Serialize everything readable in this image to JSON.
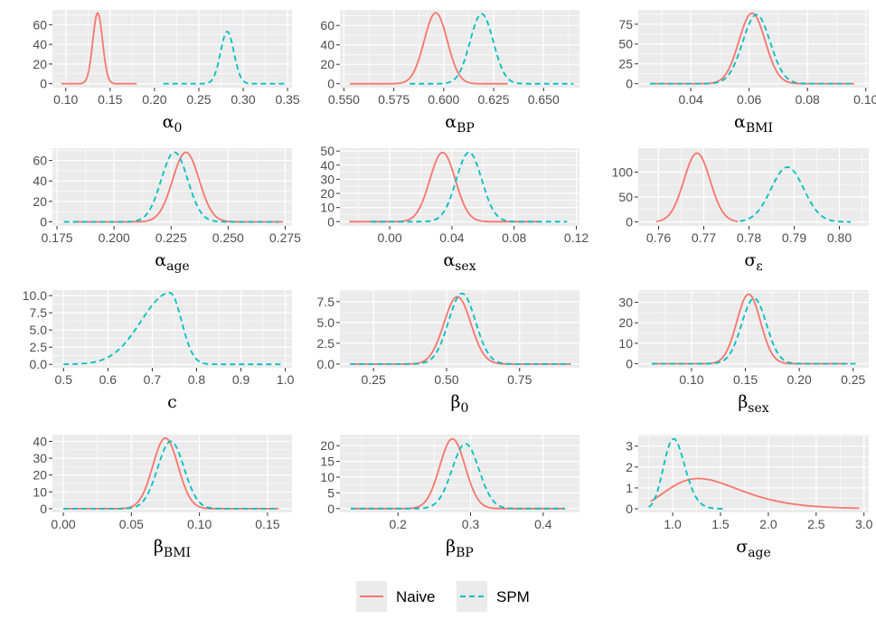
{
  "colors": {
    "naive": "#f8766d",
    "spm": "#00bfc4",
    "panel": "#ebebeb",
    "grid": "#ffffff",
    "tick_text": "#4d4d4d"
  },
  "legend": {
    "position": "bottom",
    "items": [
      {
        "name": "Naive",
        "style": "solid"
      },
      {
        "name": "SPM",
        "style": "dashed"
      }
    ]
  },
  "chart_data": [
    {
      "type": "line",
      "id": "alpha0",
      "xlabel": {
        "main": "α",
        "sub": "0"
      },
      "xlim": [
        0.085,
        0.355
      ],
      "ylim": [
        -4,
        75
      ],
      "xticks": [
        0.1,
        0.15,
        0.2,
        0.25,
        0.3,
        0.35
      ],
      "xtick_labels": [
        "0.10",
        "0.15",
        "0.20",
        "0.25",
        "0.30",
        "0.35"
      ],
      "yticks": [
        0,
        20,
        40,
        60
      ],
      "ytick_labels": [
        "0",
        "20",
        "40",
        "60"
      ],
      "series": [
        {
          "name": "Naive",
          "kind": "gauss",
          "mu": 0.136,
          "sd": 0.0055,
          "peak": 72,
          "range": [
            0.095,
            0.18
          ]
        },
        {
          "name": "SPM",
          "kind": "gauss",
          "mu": 0.282,
          "sd": 0.0075,
          "peak": 53,
          "range": [
            0.21,
            0.35
          ]
        }
      ]
    },
    {
      "type": "line",
      "id": "alphaBP",
      "xlabel": {
        "main": "α",
        "sub": "BP"
      },
      "xlim": [
        0.548,
        0.668
      ],
      "ylim": [
        -4,
        76
      ],
      "xticks": [
        0.55,
        0.575,
        0.6,
        0.625,
        0.65
      ],
      "xtick_labels": [
        "0.550",
        "0.575",
        "0.600",
        "0.625",
        "0.650"
      ],
      "yticks": [
        0,
        20,
        40,
        60
      ],
      "ytick_labels": [
        "0",
        "20",
        "40",
        "60"
      ],
      "series": [
        {
          "name": "Naive",
          "kind": "gauss",
          "mu": 0.596,
          "sd": 0.0058,
          "peak": 73,
          "range": [
            0.553,
            0.632
          ]
        },
        {
          "name": "SPM",
          "kind": "gauss",
          "mu": 0.619,
          "sd": 0.0058,
          "peak": 72,
          "range": [
            0.583,
            0.665
          ]
        }
      ]
    },
    {
      "type": "line",
      "id": "alphaBMI",
      "xlabel": {
        "main": "α",
        "sub": "BMI"
      },
      "xlim": [
        0.022,
        0.101
      ],
      "ylim": [
        -5,
        93
      ],
      "xticks": [
        0.04,
        0.06,
        0.08,
        0.1
      ],
      "xtick_labels": [
        "0.04",
        "0.06",
        "0.08",
        "0.10"
      ],
      "yticks": [
        0,
        25,
        50,
        75
      ],
      "ytick_labels": [
        "0",
        "25",
        "50",
        "75"
      ],
      "series": [
        {
          "name": "Naive",
          "kind": "gauss",
          "mu": 0.061,
          "sd": 0.0045,
          "peak": 89,
          "range": [
            0.026,
            0.096
          ]
        },
        {
          "name": "SPM",
          "kind": "gauss",
          "mu": 0.0625,
          "sd": 0.0047,
          "peak": 87,
          "range": [
            0.026,
            0.096
          ]
        }
      ]
    },
    {
      "type": "line",
      "id": "alphaAge",
      "xlabel": {
        "main": "α",
        "sub": "age"
      },
      "xlim": [
        0.173,
        0.278
      ],
      "ylim": [
        -4,
        72
      ],
      "xticks": [
        0.175,
        0.2,
        0.225,
        0.25,
        0.275
      ],
      "xtick_labels": [
        "0.175",
        "0.200",
        "0.225",
        "0.250",
        "0.275"
      ],
      "yticks": [
        0,
        20,
        40,
        60
      ],
      "ytick_labels": [
        "0",
        "20",
        "40",
        "60"
      ],
      "series": [
        {
          "name": "Naive",
          "kind": "gauss",
          "mu": 0.2315,
          "sd": 0.0058,
          "peak": 68,
          "range": [
            0.182,
            0.274
          ]
        },
        {
          "name": "SPM",
          "kind": "gauss",
          "mu": 0.2265,
          "sd": 0.0058,
          "peak": 68,
          "range": [
            0.178,
            0.272
          ]
        }
      ]
    },
    {
      "type": "line",
      "id": "alphaSex",
      "xlabel": {
        "main": "α",
        "sub": "sex"
      },
      "xlim": [
        -0.032,
        0.122
      ],
      "ylim": [
        -3,
        52
      ],
      "xticks": [
        0.0,
        0.04,
        0.08,
        0.12
      ],
      "xtick_labels": [
        "0.00",
        "0.04",
        "0.08",
        "0.12"
      ],
      "yticks": [
        0,
        10,
        20,
        30,
        40,
        50
      ],
      "ytick_labels": [
        "0",
        "10",
        "20",
        "30",
        "40",
        "50"
      ],
      "series": [
        {
          "name": "Naive",
          "kind": "gauss",
          "mu": 0.034,
          "sd": 0.0082,
          "peak": 49,
          "range": [
            -0.026,
            0.096
          ]
        },
        {
          "name": "SPM",
          "kind": "gauss",
          "mu": 0.051,
          "sd": 0.0082,
          "peak": 49,
          "range": [
            -0.012,
            0.114
          ]
        }
      ]
    },
    {
      "type": "line",
      "id": "sigmaEps",
      "xlabel": {
        "main": "σ",
        "sub": "ε"
      },
      "xlim": [
        0.7555,
        0.8065
      ],
      "ylim": [
        -8,
        148
      ],
      "xticks": [
        0.76,
        0.77,
        0.78,
        0.79,
        0.8
      ],
      "xtick_labels": [
        "0.76",
        "0.77",
        "0.78",
        "0.79",
        "0.80"
      ],
      "yticks": [
        0,
        50,
        100
      ],
      "ytick_labels": [
        "0",
        "50",
        "100"
      ],
      "series": [
        {
          "name": "Naive",
          "kind": "gauss",
          "mu": 0.7685,
          "sd": 0.0029,
          "peak": 138,
          "range": [
            0.7595,
            0.7775
          ]
        },
        {
          "name": "SPM",
          "kind": "gauss",
          "mu": 0.7885,
          "sd": 0.0036,
          "peak": 110,
          "range": [
            0.778,
            0.8025
          ]
        }
      ]
    },
    {
      "type": "line",
      "id": "c",
      "xlabel": {
        "main": "c",
        "sub": ""
      },
      "xlim": [
        0.475,
        1.015
      ],
      "ylim": [
        -0.5,
        10.8
      ],
      "xticks": [
        0.5,
        0.6,
        0.7,
        0.8,
        0.9,
        1.0
      ],
      "xtick_labels": [
        "0.5",
        "0.6",
        "0.7",
        "0.8",
        "0.9",
        "1.0"
      ],
      "yticks": [
        0,
        2.5,
        5.0,
        7.5,
        10.0
      ],
      "ytick_labels": [
        "0.0",
        "2.5",
        "5.0",
        "7.5",
        "10.0"
      ],
      "series": [
        {
          "name": "SPM",
          "kind": "skew",
          "mu": 0.74,
          "sdl": 0.065,
          "sdr": 0.026,
          "peak": 10.4,
          "range": [
            0.5,
            0.99
          ]
        }
      ]
    },
    {
      "type": "line",
      "id": "beta0",
      "xlabel": {
        "main": "β",
        "sub": "0"
      },
      "xlim": [
        0.135,
        0.955
      ],
      "ylim": [
        -0.45,
        8.9
      ],
      "xticks": [
        0.25,
        0.5,
        0.75
      ],
      "xtick_labels": [
        "0.25",
        "0.50",
        "0.75"
      ],
      "yticks": [
        0,
        2.5,
        5.0,
        7.5
      ],
      "ytick_labels": [
        "0.0",
        "2.5",
        "5.0",
        "7.5"
      ],
      "series": [
        {
          "name": "Naive",
          "kind": "gauss",
          "mu": 0.537,
          "sd": 0.046,
          "peak": 8.1,
          "range": [
            0.17,
            0.925
          ]
        },
        {
          "name": "SPM",
          "kind": "gauss",
          "mu": 0.553,
          "sd": 0.046,
          "peak": 8.5,
          "range": [
            0.17,
            0.925
          ]
        }
      ]
    },
    {
      "type": "line",
      "id": "betaSex",
      "xlabel": {
        "main": "β",
        "sub": "sex"
      },
      "xlim": [
        0.0505,
        0.2645
      ],
      "ylim": [
        -2,
        36
      ],
      "xticks": [
        0.1,
        0.15,
        0.2,
        0.25
      ],
      "xtick_labels": [
        "0.10",
        "0.15",
        "0.20",
        "0.25"
      ],
      "yticks": [
        0,
        10,
        20,
        30
      ],
      "ytick_labels": [
        "0",
        "10",
        "20",
        "30"
      ],
      "series": [
        {
          "name": "Naive",
          "kind": "gauss",
          "mu": 0.153,
          "sd": 0.011,
          "peak": 34,
          "range": [
            0.063,
            0.245
          ]
        },
        {
          "name": "SPM",
          "kind": "gauss",
          "mu": 0.158,
          "sd": 0.0115,
          "peak": 32,
          "range": [
            0.063,
            0.255
          ]
        }
      ]
    },
    {
      "type": "line",
      "id": "betaBMI",
      "xlabel": {
        "main": "β",
        "sub": "BMI"
      },
      "xlim": [
        -0.008,
        0.168
      ],
      "ylim": [
        -2.2,
        44
      ],
      "xticks": [
        0.0,
        0.05,
        0.1,
        0.15
      ],
      "xtick_labels": [
        "0.00",
        "0.05",
        "0.10",
        "0.15"
      ],
      "yticks": [
        0,
        10,
        20,
        30,
        40
      ],
      "ytick_labels": [
        "0",
        "10",
        "20",
        "30",
        "40"
      ],
      "series": [
        {
          "name": "Naive",
          "kind": "gauss",
          "mu": 0.075,
          "sd": 0.0093,
          "peak": 42,
          "range": [
            0.0,
            0.158
          ]
        },
        {
          "name": "SPM",
          "kind": "gauss",
          "mu": 0.079,
          "sd": 0.0097,
          "peak": 40,
          "range": [
            0.0,
            0.158
          ]
        }
      ]
    },
    {
      "type": "line",
      "id": "betaBP",
      "xlabel": {
        "main": "β",
        "sub": "BP"
      },
      "xlim": [
        0.12,
        0.45
      ],
      "ylim": [
        -1.2,
        23.5
      ],
      "xticks": [
        0.2,
        0.3,
        0.4
      ],
      "xtick_labels": [
        "0.2",
        "0.3",
        "0.4"
      ],
      "yticks": [
        0,
        5,
        10,
        15,
        20
      ],
      "ytick_labels": [
        "0",
        "5",
        "10",
        "15",
        "20"
      ],
      "series": [
        {
          "name": "Naive",
          "kind": "gauss",
          "mu": 0.275,
          "sd": 0.0175,
          "peak": 22.2,
          "range": [
            0.135,
            0.43
          ]
        },
        {
          "name": "SPM",
          "kind": "gauss",
          "mu": 0.293,
          "sd": 0.0185,
          "peak": 20.6,
          "range": [
            0.135,
            0.43
          ]
        }
      ]
    },
    {
      "type": "line",
      "id": "sigmaAge",
      "xlabel": {
        "main": "σ",
        "sub": "age"
      },
      "xlim": [
        0.64,
        3.05
      ],
      "ylim": [
        -0.17,
        3.55
      ],
      "xticks": [
        1.0,
        1.5,
        2.0,
        2.5,
        3.0
      ],
      "xtick_labels": [
        "1.0",
        "1.5",
        "2.0",
        "2.5",
        "3.0"
      ],
      "yticks": [
        0,
        1,
        2,
        3
      ],
      "ytick_labels": [
        "0",
        "1",
        "2",
        "3"
      ],
      "series": [
        {
          "name": "Naive",
          "kind": "lognorm",
          "mode": 1.27,
          "sigma": 0.3,
          "peak": 1.45,
          "range": [
            0.77,
            2.95
          ]
        },
        {
          "name": "SPM",
          "kind": "lognorm",
          "mode": 1.01,
          "sigma": 0.11,
          "peak": 3.35,
          "range": [
            0.75,
            1.55
          ]
        }
      ]
    }
  ]
}
